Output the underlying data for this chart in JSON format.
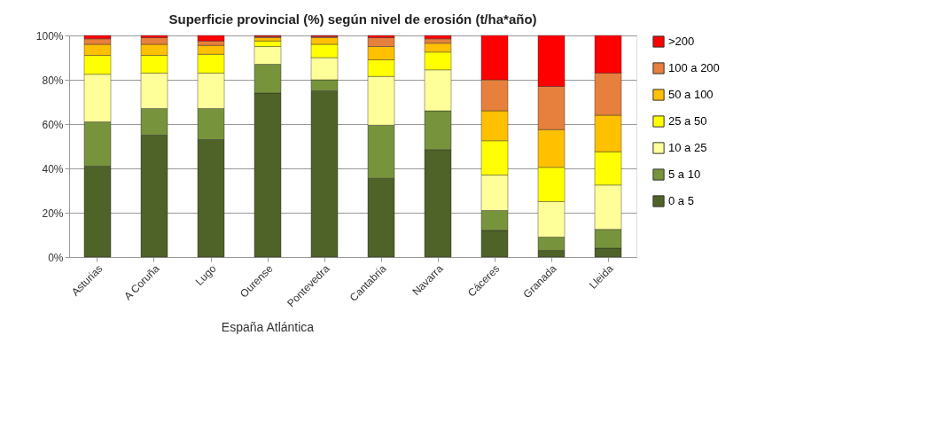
{
  "chart_data": {
    "type": "bar",
    "stacked": true,
    "title": "Superficie provincial (%)  según nivel de erosión (t/ha*año)",
    "categories": [
      "Asturias",
      "A Coruña",
      "Lugo",
      "Ourense",
      "Pontevedra",
      "Cantabria",
      "Navarra",
      "Cáceres",
      "Granada",
      "Lleida"
    ],
    "series": [
      {
        "name": "0 a 5",
        "color": "#4f6228",
        "values": [
          41,
          55,
          53,
          74,
          75,
          35.5,
          48.5,
          12,
          3,
          4
        ]
      },
      {
        "name": "5 a 10",
        "color": "#77933c",
        "values": [
          20,
          12,
          14,
          13,
          5,
          24,
          17.5,
          9,
          6,
          8.5
        ]
      },
      {
        "name": "10 a 25",
        "color": "#ffff99",
        "values": [
          21.5,
          16,
          16,
          8,
          10,
          22,
          18.5,
          16,
          16,
          20
        ]
      },
      {
        "name": "25 a 50",
        "color": "#ffff00",
        "values": [
          8.5,
          8,
          8.5,
          2.5,
          6,
          7.5,
          8,
          15.5,
          15.5,
          15
        ]
      },
      {
        "name": "50 a 100",
        "color": "#ffc000",
        "values": [
          5,
          5,
          4,
          1.5,
          3,
          6,
          4,
          13.5,
          17,
          16.5
        ]
      },
      {
        "name": "100 a 200",
        "color": "#e6803c",
        "values": [
          2.5,
          3,
          2,
          0.5,
          0.5,
          4,
          2,
          14,
          19.5,
          19
        ]
      },
      {
        "name": ">200",
        "color": "#ff0000",
        "values": [
          1.5,
          1,
          2.5,
          0.5,
          0.5,
          1,
          1.5,
          20,
          23,
          17
        ]
      }
    ],
    "ylim": [
      0,
      100
    ],
    "yticks": [
      {
        "value": 0,
        "label": "0%"
      },
      {
        "value": 20,
        "label": "20%"
      },
      {
        "value": 40,
        "label": "40%"
      },
      {
        "value": 60,
        "label": "60%"
      },
      {
        "value": 80,
        "label": "80%"
      },
      {
        "value": 100,
        "label": "100%"
      }
    ],
    "grid": "y",
    "legend": "right",
    "annotations": [
      "España Atlántica"
    ]
  }
}
